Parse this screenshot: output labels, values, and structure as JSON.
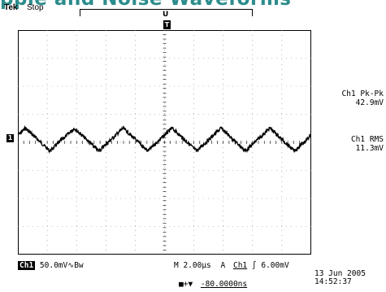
{
  "banner": "pple and Noise Waveforms",
  "header": {
    "brand": "Tek",
    "status": "Stop",
    "trigger_position_marker": "U"
  },
  "channel_marker": "1",
  "measurements": [
    {
      "label": "Ch1 Pk-Pk",
      "value": "42.9mV"
    },
    {
      "label": "Ch1 RMS",
      "value": "11.3mV"
    }
  ],
  "footer": {
    "channel": "Ch1",
    "volts_div": "50.0mV",
    "bw_symbol": "∿Bw",
    "timebase": "M 2.00μs",
    "trigger_mode": "A",
    "trigger_source": "Ch1",
    "trigger_slope": "∫",
    "trigger_level": "6.00mV",
    "position_symbol": "■+▼",
    "position_value": "-80.0000ns",
    "date": "13 Jun  2005",
    "time": "14:52:37"
  },
  "waveform": {
    "cycles": 6,
    "peak_to_peak_mV": 42.9,
    "volts_per_div_mV": 50,
    "offset_div": 0.1
  },
  "colors": {
    "banner": "#2c8c8c",
    "trace": "#000000",
    "grid": "#888888"
  }
}
